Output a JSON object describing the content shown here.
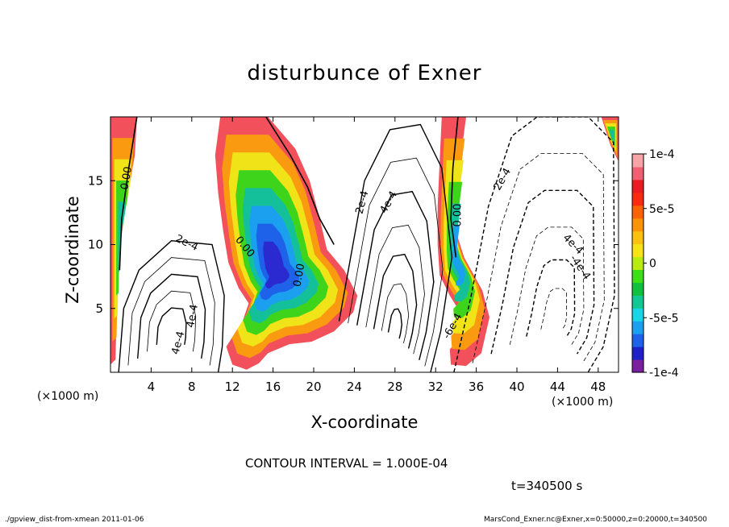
{
  "chart_data": {
    "type": "heatmap",
    "title": "disturbunce of Exner",
    "xlabel": "X-coordinate",
    "ylabel": "Z-coordinate",
    "x_unit_label": "(×1000 m)",
    "x_ticks": [
      4,
      8,
      12,
      16,
      20,
      24,
      28,
      32,
      36,
      40,
      44,
      48
    ],
    "y_ticks": [
      5,
      10,
      15
    ],
    "xlim": [
      0,
      50
    ],
    "ylim": [
      0,
      20
    ],
    "colorbar": {
      "range": [
        -0.0001,
        0.0001
      ],
      "tick_labels": [
        "1e-4",
        "5e-5",
        "0",
        "-5e-5",
        "-1e-4"
      ],
      "tick_values": [
        0.0001,
        5e-05,
        0,
        -5e-05,
        -0.0001
      ],
      "colors": [
        "#7a1fa0",
        "#2020c8",
        "#1e62ea",
        "#1aa0ee",
        "#18d6e6",
        "#14c896",
        "#12c040",
        "#3ede18",
        "#b8ec10",
        "#f6e418",
        "#fcc010",
        "#fb9408",
        "#fa6206",
        "#f82a10",
        "#e81c22",
        "#f06070",
        "#f6a4a8"
      ]
    },
    "contour_labels": [
      "0.00",
      "2e-4",
      "4e-4",
      "0.00",
      "0.00",
      "2e-4",
      "4e-4",
      "0.00",
      "2e-4",
      "4e-4",
      "-4e-4",
      "-6e-4",
      "4e-4"
    ],
    "annotations": {
      "contour_interval": "CONTOUR INTERVAL = 1.000E-04",
      "time": "t=340500 s"
    }
  },
  "footer": {
    "left": "./gpview_dist-from-xmean  2011-01-06",
    "right": "MarsCond_Exner.nc@Exner,x=0:50000,z=0:20000,t=340500"
  }
}
